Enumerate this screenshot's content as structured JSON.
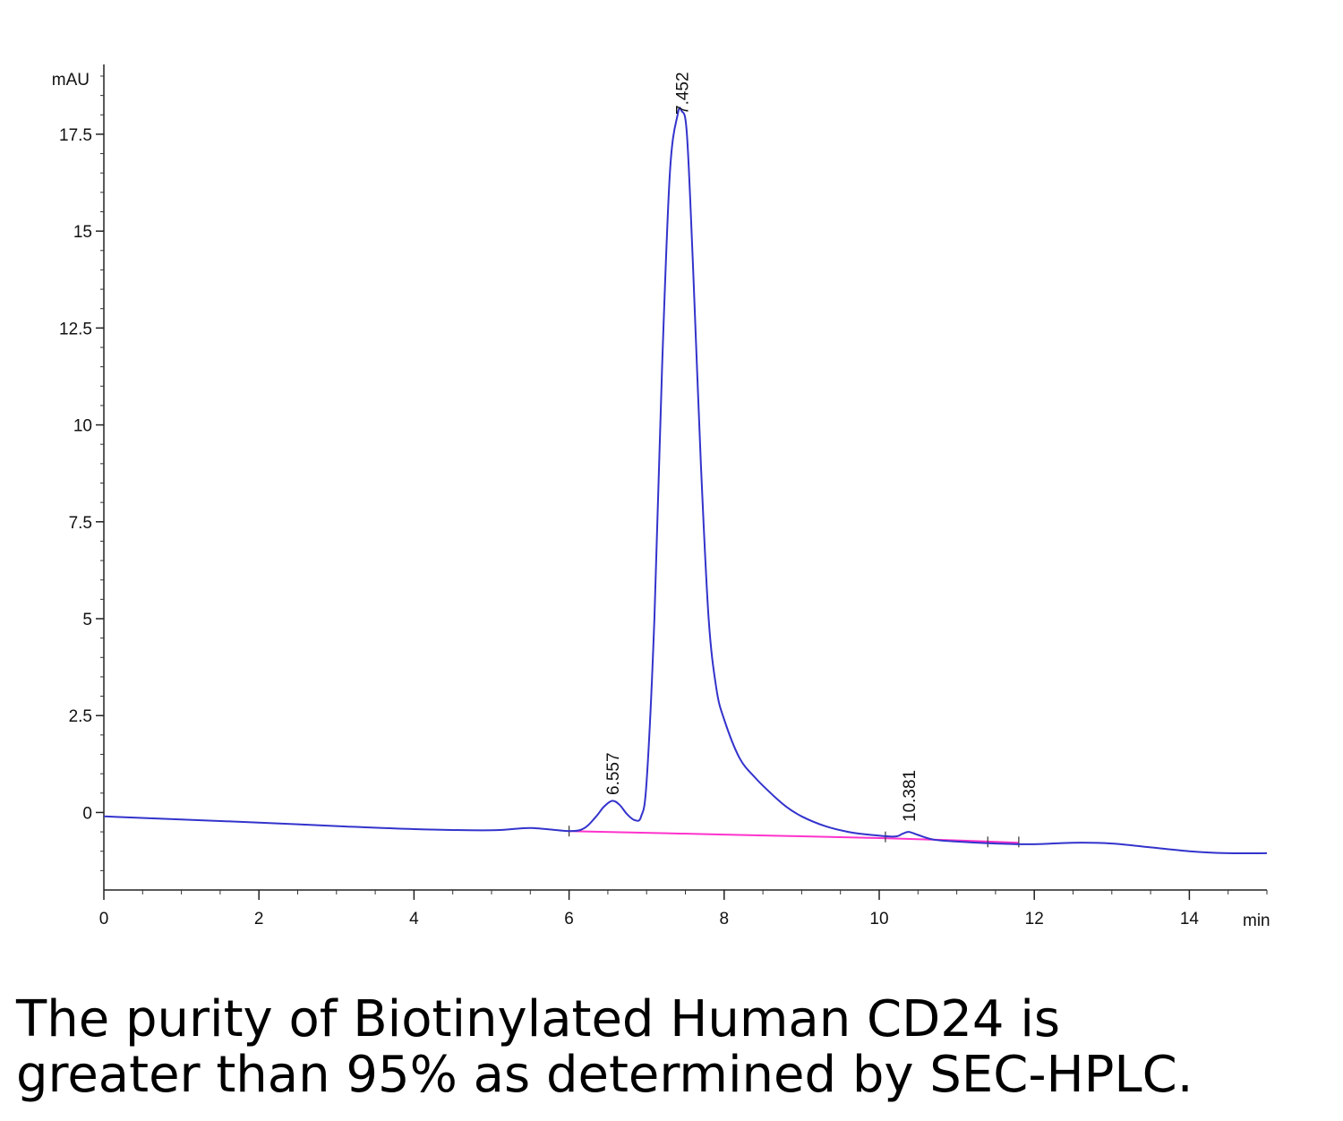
{
  "chart_data": {
    "type": "line",
    "title": "",
    "xlabel": "min",
    "ylabel": "mAU",
    "xlim": [
      0,
      15
    ],
    "ylim": [
      -2,
      19.3
    ],
    "x_ticks": [
      0,
      2,
      4,
      6,
      8,
      10,
      12,
      14
    ],
    "x_tick_labels": [
      "0",
      "2",
      "4",
      "6",
      "8",
      "10",
      "12",
      "14"
    ],
    "y_ticks": [
      0,
      2.5,
      5,
      7.5,
      10,
      12.5,
      15,
      17.5
    ],
    "y_tick_labels": [
      "0",
      "2.5",
      "5",
      "7.5",
      "10",
      "12.5",
      "15",
      "17.5"
    ],
    "grid": false,
    "series": [
      {
        "color": "#3333cc",
        "x": [
          0,
          1,
          2,
          3,
          4,
          5,
          5.5,
          6.0,
          6.2,
          6.35,
          6.45,
          6.557,
          6.65,
          6.75,
          6.85,
          6.93,
          7.0,
          7.1,
          7.2,
          7.3,
          7.4,
          7.452,
          7.52,
          7.6,
          7.7,
          7.8,
          7.9,
          8.0,
          8.2,
          8.4,
          8.6,
          8.8,
          9.0,
          9.3,
          9.6,
          9.9,
          10.2,
          10.3,
          10.381,
          10.5,
          10.7,
          11.0,
          11.5,
          12.0,
          12.5,
          13.0,
          13.5,
          14.0,
          14.5,
          15.0
        ],
        "y": [
          -0.1,
          -0.18,
          -0.26,
          -0.35,
          -0.43,
          -0.46,
          -0.4,
          -0.48,
          -0.4,
          -0.1,
          0.15,
          0.3,
          0.2,
          -0.05,
          -0.2,
          -0.1,
          0.8,
          5.0,
          11.5,
          16.5,
          18.0,
          18.1,
          17.5,
          14.0,
          9.0,
          5.0,
          3.2,
          2.4,
          1.4,
          0.9,
          0.5,
          0.15,
          -0.1,
          -0.35,
          -0.5,
          -0.58,
          -0.62,
          -0.55,
          -0.5,
          -0.58,
          -0.7,
          -0.75,
          -0.8,
          -0.82,
          -0.78,
          -0.8,
          -0.9,
          -1.0,
          -1.05,
          -1.05
        ]
      },
      {
        "color": "#ff33cc",
        "x": [
          6.0,
          8.0,
          10.0,
          11.0,
          11.8
        ],
        "y": [
          -0.48,
          -0.57,
          -0.66,
          -0.72,
          -0.78
        ]
      }
    ],
    "annotations": [
      {
        "x": 6.557,
        "label": "6.557"
      },
      {
        "x": 7.452,
        "label": "7.452"
      },
      {
        "x": 10.381,
        "label": "10.381"
      }
    ]
  },
  "caption": {
    "line1": "The purity of Biotinylated Human CD24 is",
    "line2": "greater than 95% as determined by SEC-HPLC."
  }
}
